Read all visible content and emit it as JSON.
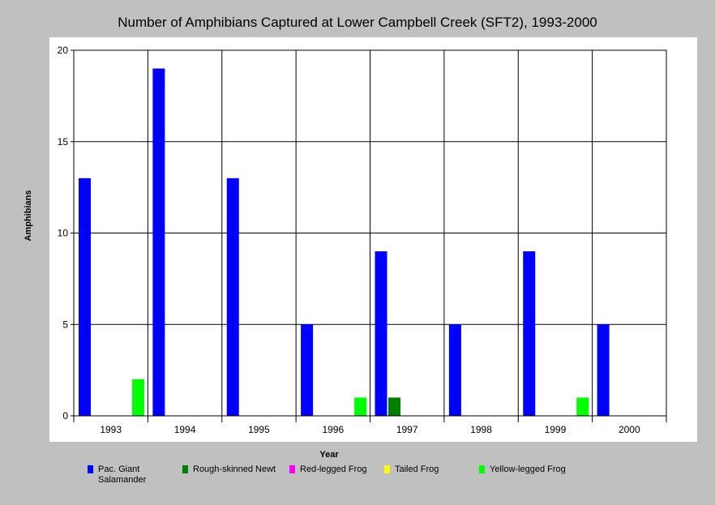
{
  "chart_data": {
    "type": "bar",
    "title": "Number of Amphibians Captured at Lower Campbell Creek (SFT2), 1993-2000",
    "xlabel": "Year",
    "ylabel": "Amphibians",
    "ylim": [
      0,
      20
    ],
    "yticks": [
      "0",
      "5",
      "10",
      "15",
      "20"
    ],
    "categories": [
      "1993",
      "1994",
      "1995",
      "1996",
      "1997",
      "1998",
      "1999",
      "2000"
    ],
    "grid": true,
    "legend_position": "bottom",
    "series": [
      {
        "name": "Pac. Giant Salamander",
        "color": "#0000ff",
        "values": [
          13,
          19,
          13,
          5,
          9,
          5,
          9,
          5
        ]
      },
      {
        "name": "Rough-skinned Newt",
        "color": "#008000",
        "values": [
          0,
          0,
          0,
          0,
          1,
          0,
          0,
          0
        ]
      },
      {
        "name": "Red-legged Frog",
        "color": "#ff00ff",
        "values": [
          0,
          0,
          0,
          0,
          0,
          0,
          0,
          0
        ]
      },
      {
        "name": "Tailed Frog",
        "color": "#ffff00",
        "values": [
          0,
          0,
          0,
          0,
          0,
          0,
          0,
          0
        ]
      },
      {
        "name": "Yellow-legged Frog",
        "color": "#00ff00",
        "values": [
          2,
          0,
          0,
          1,
          0,
          0,
          1,
          0
        ]
      }
    ]
  }
}
